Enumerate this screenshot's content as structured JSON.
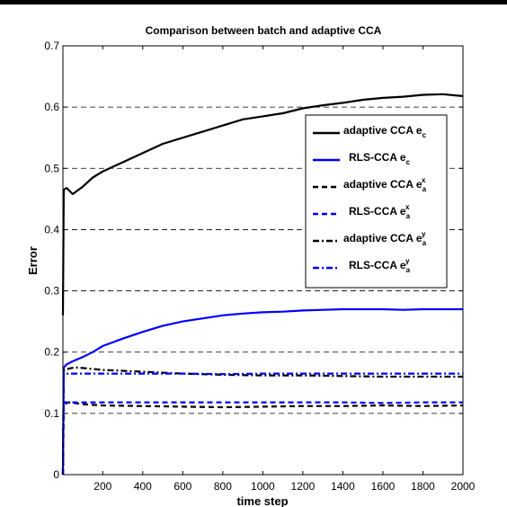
{
  "chart_data": {
    "type": "line",
    "title": "Comparison between batch and adaptive CCA",
    "xlabel": "time step",
    "ylabel": "Error",
    "xlim": [
      1,
      2000
    ],
    "ylim": [
      0,
      0.7
    ],
    "xticks": [
      200,
      400,
      600,
      800,
      1000,
      1200,
      1400,
      1600,
      1800,
      2000
    ],
    "yticks": [
      0,
      0.1,
      0.2,
      0.3,
      0.4,
      0.5,
      0.6,
      0.7
    ],
    "grid": "horizontal dashed",
    "legend_position": "right, inside axes",
    "series": [
      {
        "name": "adaptive CCA e",
        "subscript": "c",
        "superscript": "",
        "color": "#000000",
        "dash": "solid",
        "x": [
          1,
          5,
          20,
          50,
          100,
          150,
          200,
          300,
          400,
          500,
          600,
          700,
          800,
          900,
          1000,
          1100,
          1200,
          1300,
          1400,
          1500,
          1600,
          1700,
          1800,
          1900,
          2000
        ],
        "values": [
          0.26,
          0.465,
          0.468,
          0.458,
          0.47,
          0.485,
          0.495,
          0.51,
          0.525,
          0.54,
          0.55,
          0.56,
          0.57,
          0.58,
          0.585,
          0.59,
          0.598,
          0.603,
          0.607,
          0.612,
          0.615,
          0.617,
          0.62,
          0.621,
          0.618
        ]
      },
      {
        "name": "RLS-CCA e",
        "subscript": "c",
        "superscript": "",
        "color": "#0000ff",
        "dash": "solid",
        "x": [
          1,
          5,
          20,
          50,
          100,
          150,
          200,
          300,
          400,
          500,
          600,
          700,
          800,
          900,
          1000,
          1100,
          1200,
          1300,
          1400,
          1500,
          1600,
          1700,
          1800,
          1900,
          2000
        ],
        "values": [
          0.0,
          0.175,
          0.18,
          0.185,
          0.192,
          0.2,
          0.21,
          0.222,
          0.233,
          0.243,
          0.25,
          0.255,
          0.26,
          0.263,
          0.265,
          0.266,
          0.268,
          0.269,
          0.27,
          0.27,
          0.27,
          0.269,
          0.27,
          0.27,
          0.27
        ]
      },
      {
        "name": "adaptive CCA e",
        "subscript": "a",
        "superscript": "x",
        "color": "#000000",
        "dash": "dashed",
        "x": [
          1,
          5,
          30,
          100,
          200,
          400,
          600,
          800,
          1000,
          1200,
          1400,
          1600,
          1800,
          2000
        ],
        "values": [
          0.0,
          0.115,
          0.118,
          0.115,
          0.113,
          0.112,
          0.111,
          0.11,
          0.111,
          0.112,
          0.112,
          0.113,
          0.112,
          0.113
        ]
      },
      {
        "name": "RLS-CCA e",
        "subscript": "a",
        "superscript": "x",
        "color": "#0000ff",
        "dash": "dashed",
        "x": [
          1,
          5,
          30,
          100,
          200,
          400,
          600,
          800,
          1000,
          1200,
          1400,
          1600,
          1800,
          2000
        ],
        "values": [
          0.0,
          0.118,
          0.118,
          0.118,
          0.118,
          0.118,
          0.118,
          0.118,
          0.118,
          0.118,
          0.118,
          0.117,
          0.118,
          0.118
        ]
      },
      {
        "name": "adaptive CCA e",
        "subscript": "a",
        "superscript": "y",
        "color": "#000000",
        "dash": "dashdot",
        "x": [
          1,
          5,
          30,
          60,
          100,
          200,
          400,
          600,
          800,
          1000,
          1200,
          1400,
          1600,
          1800,
          2000
        ],
        "values": [
          0.0,
          0.17,
          0.173,
          0.175,
          0.174,
          0.171,
          0.168,
          0.165,
          0.163,
          0.162,
          0.162,
          0.161,
          0.16,
          0.16,
          0.16
        ]
      },
      {
        "name": "RLS-CCA e",
        "subscript": "a",
        "superscript": "y",
        "color": "#0000ff",
        "dash": "dashdot",
        "x": [
          1,
          5,
          30,
          100,
          200,
          400,
          600,
          800,
          1000,
          1200,
          1400,
          1600,
          1800,
          2000
        ],
        "values": [
          0.0,
          0.164,
          0.165,
          0.165,
          0.165,
          0.165,
          0.165,
          0.164,
          0.165,
          0.165,
          0.165,
          0.165,
          0.165,
          0.165
        ]
      }
    ]
  }
}
